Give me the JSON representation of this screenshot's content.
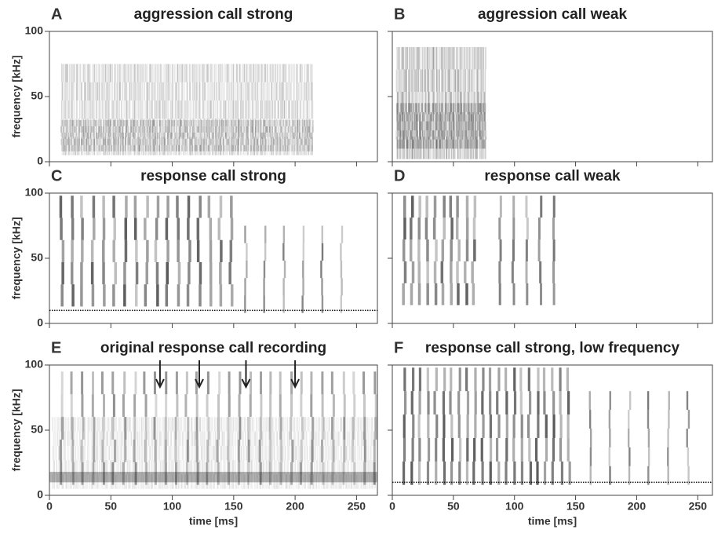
{
  "chart_data": [
    {
      "type": "spectrogram",
      "letter": "A",
      "title": "aggression call strong",
      "ylabel": "frequency [kHz]",
      "xlim": [
        0,
        267
      ],
      "ylim": [
        0,
        100
      ],
      "yticks": [
        0,
        50,
        100
      ],
      "xticks": [
        0,
        50,
        100,
        150,
        200,
        250
      ],
      "y_tick_labels": true,
      "x_tick_labels": false
    },
    {
      "type": "spectrogram",
      "letter": "B",
      "title": "aggression call weak",
      "xlim": [
        0,
        262
      ],
      "ylim": [
        0,
        100
      ],
      "yticks": [
        0,
        50,
        100
      ],
      "xticks": [
        0,
        50,
        100,
        150,
        200,
        250
      ],
      "y_tick_labels": false,
      "x_tick_labels": false
    },
    {
      "type": "spectrogram",
      "letter": "C",
      "title": "response call strong",
      "ylabel": "frequency [kHz]",
      "xlim": [
        0,
        267
      ],
      "ylim": [
        0,
        100
      ],
      "yticks": [
        0,
        50,
        100
      ],
      "xticks": [
        0,
        50,
        100,
        150,
        200,
        250
      ],
      "y_tick_labels": true,
      "x_tick_labels": false,
      "hline": 10
    },
    {
      "type": "spectrogram",
      "letter": "D",
      "title": "response call weak",
      "xlim": [
        0,
        262
      ],
      "ylim": [
        0,
        100
      ],
      "yticks": [
        0,
        50,
        100
      ],
      "xticks": [
        0,
        50,
        100,
        150,
        200,
        250
      ],
      "y_tick_labels": false,
      "x_tick_labels": false
    },
    {
      "type": "spectrogram",
      "letter": "E",
      "title": "original response call recording",
      "ylabel": "frequency [kHz]",
      "xlabel": "time [ms]",
      "xlim": [
        0,
        267
      ],
      "ylim": [
        0,
        100
      ],
      "yticks": [
        0,
        50,
        100
      ],
      "xticks": [
        0,
        50,
        100,
        150,
        200,
        250
      ],
      "y_tick_labels": true,
      "x_tick_labels": true,
      "arrows_x": [
        90,
        122,
        160,
        200
      ]
    },
    {
      "type": "spectrogram",
      "letter": "F",
      "title": "response call strong, low frequency",
      "xlabel": "time [ms]",
      "xlim": [
        0,
        262
      ],
      "ylim": [
        0,
        100
      ],
      "yticks": [
        0,
        50,
        100
      ],
      "xticks": [
        0,
        50,
        100,
        150,
        200,
        250
      ],
      "y_tick_labels": false,
      "x_tick_labels": true,
      "hline": 10
    }
  ]
}
